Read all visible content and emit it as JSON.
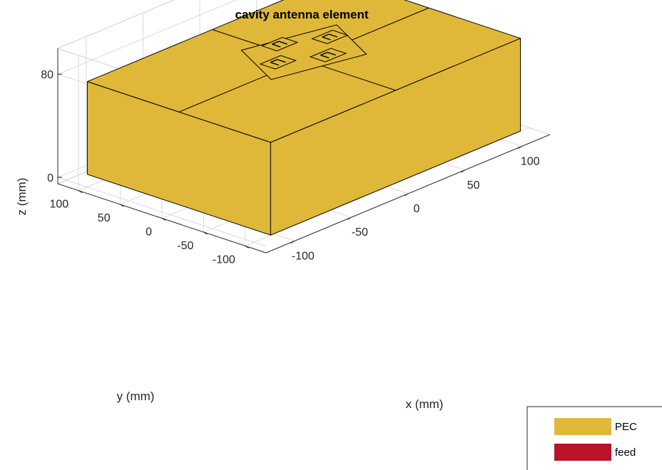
{
  "chart_data": {
    "type": "3d-surface",
    "title": "cavity antenna element",
    "xlabel": "x (mm)",
    "ylabel": "y (mm)",
    "zlabel": "z (mm)",
    "xlim": [
      -125,
      125
    ],
    "ylim": [
      -125,
      125
    ],
    "zlim": [
      -5,
      100
    ],
    "xticks": [
      -100,
      -50,
      0,
      50,
      100
    ],
    "yticks": [
      -100,
      -50,
      0,
      50,
      100
    ],
    "zticks": [
      0,
      80
    ],
    "grid": true,
    "legend_position": "bottom-right",
    "legend": [
      {
        "label": "PEC",
        "color": "#DFB839"
      },
      {
        "label": "feed",
        "color": "#B8142A"
      }
    ],
    "cavity": {
      "x": [
        -110,
        110
      ],
      "y": [
        -110,
        110
      ],
      "z": [
        0,
        72
      ]
    },
    "element_patches": [
      {
        "x": -3,
        "y": 25
      },
      {
        "x": 25,
        "y": 3
      },
      {
        "x": 3,
        "y": -25
      },
      {
        "x": -25,
        "y": -3
      }
    ]
  }
}
